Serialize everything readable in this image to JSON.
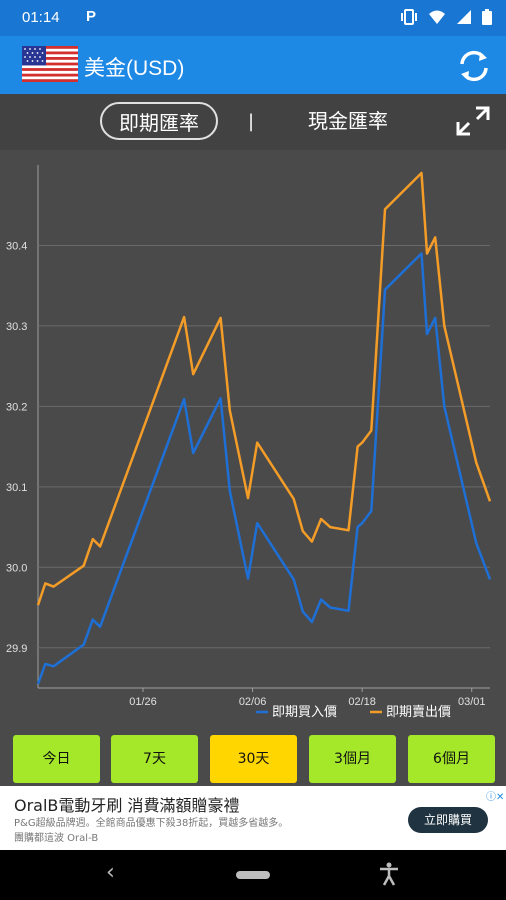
{
  "status_bar": {
    "time": "01:14",
    "app_icon": "P",
    "icons": [
      "vibrate-icon",
      "wifi-icon",
      "signal-icon",
      "battery-icon"
    ]
  },
  "app_bar": {
    "title": "美金(USD)",
    "icons": [
      "us-flag-icon",
      "refresh-icon"
    ]
  },
  "rate_tabs": {
    "spot": "即期匯率",
    "separator": "|",
    "cash": "現金匯率",
    "active": "spot"
  },
  "chart_data": {
    "type": "line",
    "title": "",
    "xlabel": "",
    "ylabel": "",
    "ylim": [
      29.85,
      30.5
    ],
    "y_ticks": [
      "29.9",
      "30.0",
      "30.1",
      "30.2",
      "30.3",
      "30.4"
    ],
    "x_ticks": [
      "01/26",
      "02/06",
      "02/18",
      "03/01"
    ],
    "x_tick_positions": [
      11.5,
      23.5,
      35.5,
      47.5
    ],
    "xlim": [
      0,
      49.5
    ],
    "grid": true,
    "legend_position": "bottom-right",
    "x": [
      0,
      0.8,
      1.7,
      5,
      6,
      6.8,
      16,
      17,
      20,
      21,
      23,
      24,
      28,
      29,
      30,
      31,
      32,
      33,
      34,
      35,
      35.5,
      36.5,
      38,
      42,
      42.6,
      43.5,
      44.5,
      48,
      49.5
    ],
    "series": [
      {
        "name": "即期買入價",
        "color": "#1e6fd6",
        "values": [
          29.855,
          29.88,
          29.877,
          29.904,
          29.935,
          29.926,
          30.209,
          30.142,
          30.21,
          30.095,
          29.986,
          30.055,
          29.985,
          29.945,
          29.932,
          29.96,
          29.95,
          29.948,
          29.946,
          30.05,
          30.055,
          30.07,
          30.345,
          30.39,
          30.29,
          30.31,
          30.2,
          30.03,
          29.985
        ]
      },
      {
        "name": "即期賣出價",
        "color": "#f39c27",
        "values": [
          29.953,
          29.98,
          29.976,
          30.002,
          30.035,
          30.026,
          30.311,
          30.24,
          30.31,
          30.195,
          30.086,
          30.155,
          30.085,
          30.045,
          30.032,
          30.06,
          30.05,
          30.048,
          30.046,
          30.15,
          30.155,
          30.17,
          30.445,
          30.49,
          30.39,
          30.41,
          30.3,
          30.13,
          30.082
        ]
      }
    ]
  },
  "range_buttons": [
    {
      "label": "今日",
      "selected": false
    },
    {
      "label": "7天",
      "selected": false
    },
    {
      "label": "30天",
      "selected": true
    },
    {
      "label": "3個月",
      "selected": false
    },
    {
      "label": "6個月",
      "selected": false
    }
  ],
  "ad": {
    "title": "OralB電動牙刷 消費滿額贈豪禮",
    "line1": "P&G超級品牌週。全館商品優惠下殺38折起，買越多省越多。",
    "line2": "團購都這波 Oral-B",
    "cta": "立即購買",
    "mark": "ⓘ✕"
  },
  "colors": {
    "status_bar": "#1976d2",
    "app_bar": "#1e88e5",
    "chart_bg": "#4a4a4a",
    "range_button": "#a5e82a",
    "range_button_selected": "#ffd600"
  }
}
